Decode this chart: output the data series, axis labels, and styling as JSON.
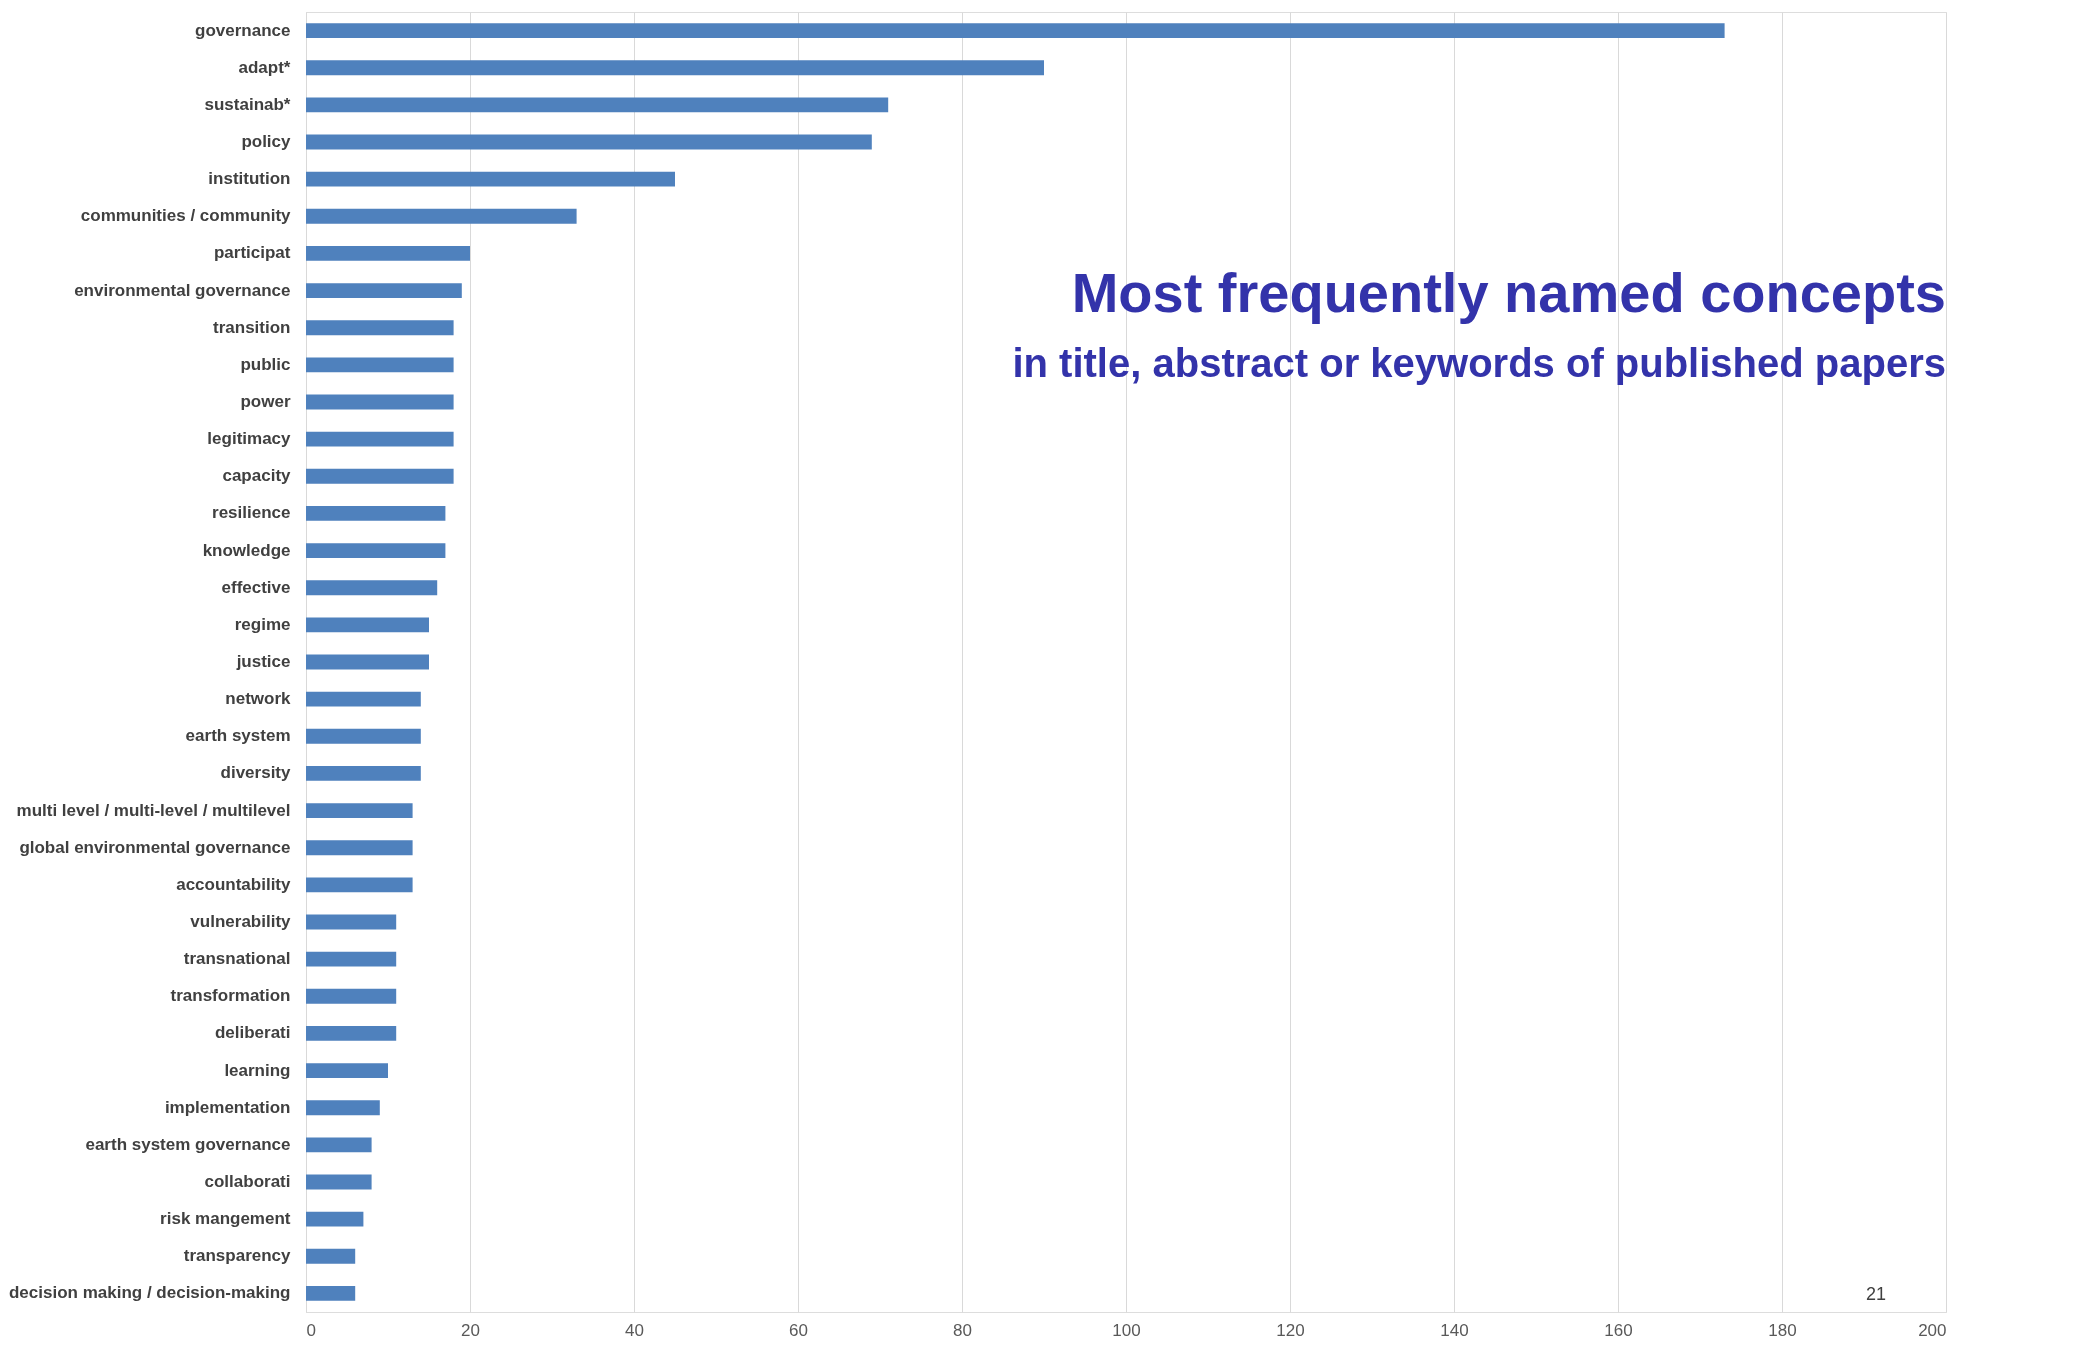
{
  "chart_data": {
    "type": "bar",
    "orientation": "horizontal",
    "title": "Most frequently named concepts",
    "subtitle": "in title, abstract or keywords of published papers",
    "categories": [
      "governance",
      "adapt*",
      "sustainab*",
      "policy",
      "institution",
      "communities / community",
      "participat",
      "environmental governance",
      "transition",
      "public",
      "power",
      "legitimacy",
      "capacity",
      "resilience",
      "knowledge",
      "effective",
      "regime",
      "justice",
      "network",
      "earth system",
      "diversity",
      "multi level / multi-level / multilevel",
      "global environmental governance",
      "accountability",
      "vulnerability",
      "transnational",
      "transformation",
      "deliberati",
      "learning",
      "implementation",
      "earth system governance",
      "collaborati",
      "risk mangement",
      "transparency",
      "decision making / decision-making"
    ],
    "values": [
      173,
      90,
      71,
      69,
      45,
      33,
      20,
      19,
      18,
      18,
      18,
      18,
      18,
      17,
      17,
      16,
      15,
      15,
      14,
      14,
      14,
      13,
      13,
      13,
      11,
      11,
      11,
      11,
      10,
      9,
      8,
      8,
      7,
      6,
      6
    ],
    "color": "#4f81bd",
    "xlim": [
      0,
      200
    ],
    "xticks": [
      0,
      20,
      40,
      60,
      80,
      100,
      120,
      140,
      160,
      180,
      200
    ],
    "grid": "x",
    "annotations": [
      "21"
    ]
  }
}
